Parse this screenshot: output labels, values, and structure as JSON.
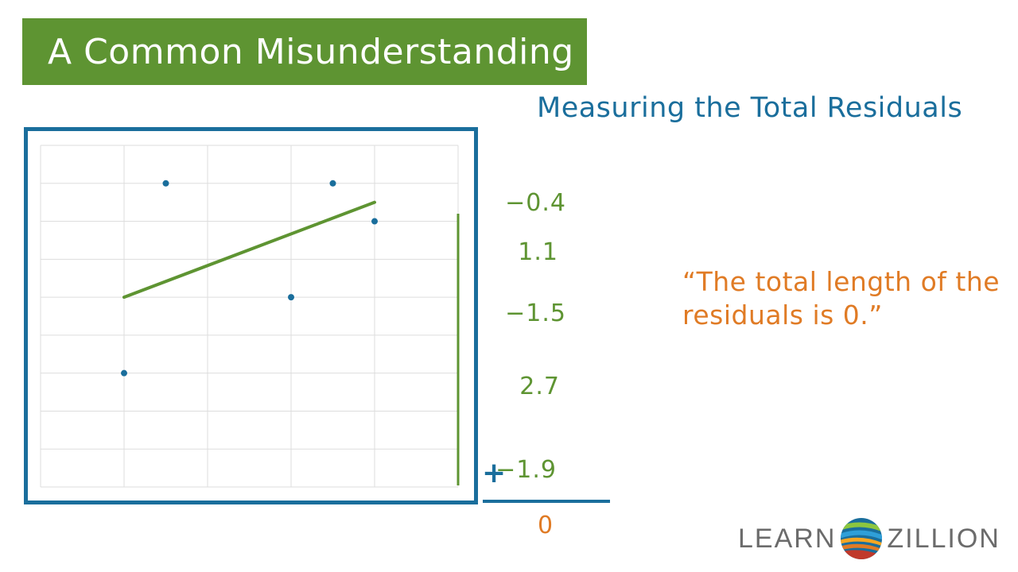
{
  "title": "A Common Misunderstanding",
  "subtitle": "Measuring the Total Residuals",
  "residuals": [
    "−0.4",
    "1.1",
    "−1.5",
    "2.7",
    "−1.9"
  ],
  "plus_sign": "+",
  "sum": "0",
  "quote": "“The total length of the residuals is 0.”",
  "brand": {
    "part1": "LEARN",
    "part2": "ZILLION"
  },
  "colors": {
    "title_bg": "#5e9432",
    "blue": "#1a6e9c",
    "green": "#5e9432",
    "orange": "#e07b25",
    "grid": "#dddddd",
    "brand_text": "#6b6b6b"
  },
  "chart_data": {
    "type": "scatter",
    "xlim": [
      0,
      5
    ],
    "ylim": [
      0,
      9
    ],
    "grid": true,
    "points": [
      {
        "x": 1.0,
        "y": 3.0
      },
      {
        "x": 1.5,
        "y": 8.0
      },
      {
        "x": 3.0,
        "y": 5.0
      },
      {
        "x": 3.5,
        "y": 8.0
      },
      {
        "x": 4.0,
        "y": 7.0
      }
    ],
    "trend_line": [
      {
        "x": 1.0,
        "y": 5.0
      },
      {
        "x": 4.0,
        "y": 7.5
      }
    ]
  }
}
